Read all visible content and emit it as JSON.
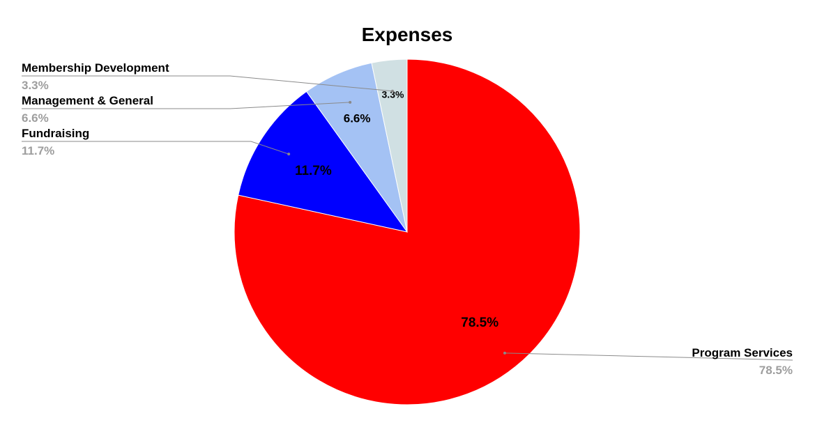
{
  "chart_data": {
    "type": "pie",
    "title": "Expenses",
    "slices": [
      {
        "name": "Program Services",
        "value": 78.5,
        "label": "78.5%",
        "color": "#ff0000"
      },
      {
        "name": "Fundraising",
        "value": 11.7,
        "label": "11.7%",
        "color": "#0000ff"
      },
      {
        "name": "Management & General",
        "value": 6.6,
        "label": "6.6%",
        "color": "#a4c2f4"
      },
      {
        "name": "Membership Development",
        "value": 3.3,
        "label": "3.3%",
        "color": "#d0e0e3"
      }
    ],
    "start_angle_deg": 0,
    "direction": "clockwise",
    "legend": "callout-labels"
  }
}
